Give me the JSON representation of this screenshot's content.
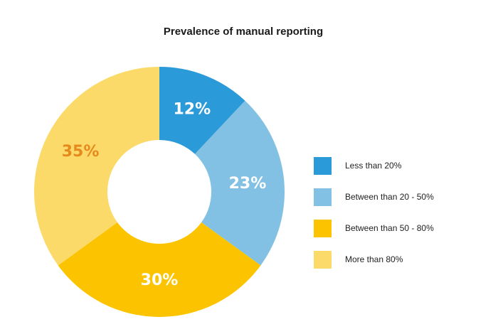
{
  "chart_data": {
    "type": "pie",
    "style": "donut",
    "title": "Prevalence of manual reporting",
    "categories": [
      "Less than 20%",
      "Between than 20 - 50%",
      "Between than 50 - 80%",
      "More than 80%"
    ],
    "values": [
      12,
      23,
      30,
      35
    ],
    "value_labels": [
      "12%",
      "23%",
      "30%",
      "35%"
    ],
    "colors": [
      "#2b9ad8",
      "#82c1e4",
      "#fcc400",
      "#fbda6a"
    ],
    "label_colors": [
      "#ffffff",
      "#ffffff",
      "#ffffff",
      "#e58a1c"
    ],
    "legend": {
      "position": "right",
      "entries": [
        "Less than 20%",
        "Between than 20 - 50%",
        "Between than 50 - 80%",
        "More than 80%"
      ]
    }
  }
}
